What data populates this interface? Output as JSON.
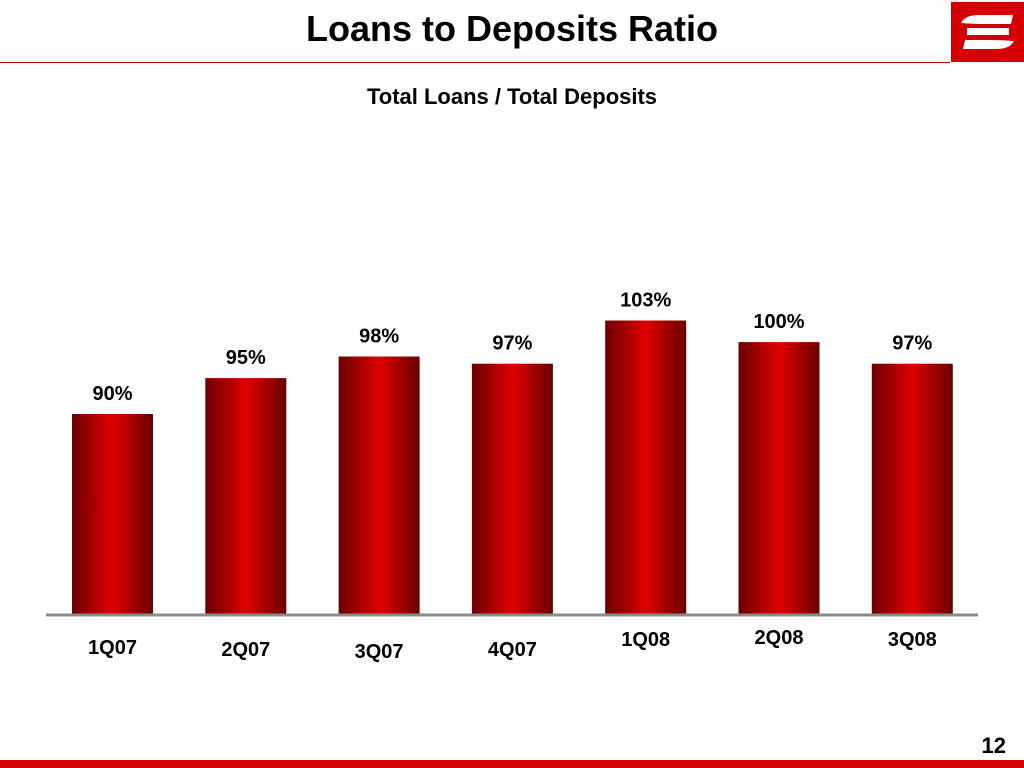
{
  "slide": {
    "title": "Loans to Deposits Ratio",
    "page_number": "12"
  },
  "colors": {
    "brand_red": "#d40000",
    "bar_light": "#e00000",
    "bar_dark": "#6a0000",
    "baseline": "#8c8c8c"
  },
  "chart_data": {
    "type": "bar",
    "title": "Total Loans / Total Deposits",
    "xlabel": "",
    "ylabel": "",
    "categories": [
      "1Q07",
      "2Q07",
      "3Q07",
      "4Q07",
      "1Q08",
      "2Q08",
      "3Q08"
    ],
    "values": [
      90,
      95,
      98,
      97,
      103,
      100,
      97
    ],
    "value_labels": [
      "90%",
      "95%",
      "98%",
      "97%",
      "103%",
      "100%",
      "97%"
    ],
    "unit": "%",
    "grid": false,
    "legend": "none"
  }
}
